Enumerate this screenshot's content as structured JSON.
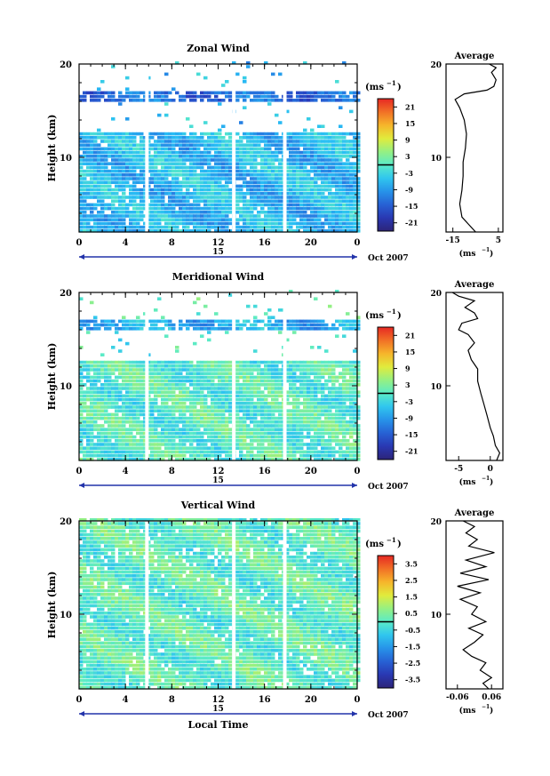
{
  "chart_data": [
    {
      "type": "heatmap",
      "title": "Zonal Wind",
      "ylabel": "Height (km)",
      "unit_label": "(ms",
      "unit_exp": "−1",
      "x_ticks": [
        "0",
        "4",
        "8",
        "12",
        "16",
        "20",
        "0"
      ],
      "xlim": [
        0,
        24
      ],
      "y_ticks": [
        "20",
        "10"
      ],
      "ylim": [
        2,
        20
      ],
      "date_label": "15",
      "date_suffix": "Oct 2007",
      "colorbar": {
        "ticks": [
          "21",
          "15",
          "9",
          "3",
          "-3",
          "-9",
          "-15",
          "-21"
        ],
        "range": [
          -24,
          24
        ]
      },
      "gaps": [
        5.7,
        13.2,
        17.6
      ],
      "field_levels": {
        "upper_band_km": [
          16,
          17.2
        ],
        "lower_top_km": 12.5,
        "lower_value_ms": -6,
        "upper_value_ms": -13
      },
      "profile": {
        "title": "Average",
        "x_ticks": [
          "-15",
          "5"
        ],
        "xlim": [
          -18,
          7
        ],
        "unit_label": "(ms",
        "unit_exp": "−1",
        "y_ticks": [
          "20",
          "10"
        ],
        "points": [
          [
            -5,
            2.0
          ],
          [
            -8,
            2.8
          ],
          [
            -11,
            3.6
          ],
          [
            -12,
            5
          ],
          [
            -11,
            6.5
          ],
          [
            -10.5,
            8
          ],
          [
            -10.5,
            9.5
          ],
          [
            -9.5,
            11
          ],
          [
            -9,
            12.5
          ],
          [
            -10,
            14
          ],
          [
            -12,
            15.3
          ],
          [
            -14,
            16.2
          ],
          [
            -10,
            16.8
          ],
          [
            0,
            17.2
          ],
          [
            3,
            17.6
          ],
          [
            4,
            18.3
          ],
          [
            2,
            19.1
          ],
          [
            4,
            19.6
          ],
          [
            1,
            20.0
          ]
        ]
      }
    },
    {
      "type": "heatmap",
      "title": "Meridional Wind",
      "ylabel": "Height (km)",
      "unit_label": "(ms",
      "unit_exp": "−1",
      "x_ticks": [
        "0",
        "4",
        "8",
        "12",
        "16",
        "20",
        "0"
      ],
      "xlim": [
        0,
        24
      ],
      "y_ticks": [
        "20",
        "10"
      ],
      "ylim": [
        2,
        20
      ],
      "date_label": "15",
      "date_suffix": "Oct 2007",
      "colorbar": {
        "ticks": [
          "21",
          "15",
          "9",
          "3",
          "-3",
          "-9",
          "-15",
          "-21"
        ],
        "range": [
          -24,
          24
        ]
      },
      "gaps": [
        5.7,
        13.2,
        17.6
      ],
      "field_levels": {
        "upper_band_km": [
          16,
          17.2
        ],
        "lower_top_km": 12.5,
        "lower_value_ms": 0,
        "upper_value_ms": -7
      },
      "profile": {
        "title": "Average",
        "x_ticks": [
          "-5",
          "0"
        ],
        "xlim": [
          -7,
          2
        ],
        "unit_label": "(ms",
        "unit_exp": "−1",
        "y_ticks": [
          "20",
          "10"
        ],
        "points": [
          [
            1,
            2.0
          ],
          [
            1.5,
            2.8
          ],
          [
            0.8,
            3.6
          ],
          [
            0.5,
            4.6
          ],
          [
            0,
            5.5
          ],
          [
            -0.5,
            6.8
          ],
          [
            -1,
            8
          ],
          [
            -1.5,
            9.2
          ],
          [
            -2,
            10.5
          ],
          [
            -2,
            11.8
          ],
          [
            -3,
            12.8
          ],
          [
            -3.5,
            13.8
          ],
          [
            -2.5,
            14.6
          ],
          [
            -3.5,
            15.5
          ],
          [
            -5,
            16
          ],
          [
            -4.5,
            16.7
          ],
          [
            -2,
            17.2
          ],
          [
            -2.5,
            17.8
          ],
          [
            -4,
            18.4
          ],
          [
            -2.5,
            19.1
          ],
          [
            -5,
            19.6
          ],
          [
            -6,
            20.0
          ]
        ]
      }
    },
    {
      "type": "heatmap",
      "title": "Vertical Wind",
      "ylabel": "Height (km)",
      "unit_label": "(ms",
      "unit_exp": "−1",
      "x_ticks": [
        "0",
        "4",
        "8",
        "12",
        "16",
        "20",
        "0"
      ],
      "xlim": [
        0,
        24
      ],
      "y_ticks": [
        "20",
        "10"
      ],
      "ylim": [
        2,
        20
      ],
      "date_label": "15",
      "date_suffix": "Oct 2007",
      "xlabel": "Local Time",
      "colorbar": {
        "ticks": [
          "3.5",
          "2.5",
          "1.5",
          "0.5",
          "-0.5",
          "-1.5",
          "-2.5",
          "-3.5"
        ],
        "range": [
          -4,
          4
        ]
      },
      "gaps": [
        5.7,
        13.2,
        17.6
      ],
      "field_levels": {
        "upper_band_km": [
          16,
          17.2
        ],
        "lower_top_km": 20,
        "lower_value_ms": 0.1,
        "upper_value_ms": 0.1
      },
      "profile": {
        "title": "Average",
        "x_ticks": [
          "-0.06",
          "0.06"
        ],
        "xlim": [
          -0.1,
          0.1
        ],
        "unit_label": "(ms",
        "unit_exp": "−1",
        "y_ticks": [
          "20",
          "10"
        ],
        "points": [
          [
            0.05,
            2.0
          ],
          [
            0.03,
            2.6
          ],
          [
            0.06,
            3.2
          ],
          [
            0.02,
            4
          ],
          [
            0.04,
            4.8
          ],
          [
            -0.01,
            5.5
          ],
          [
            -0.04,
            6.2
          ],
          [
            0.0,
            7
          ],
          [
            0.03,
            7.8
          ],
          [
            -0.02,
            8.5
          ],
          [
            0.04,
            9.2
          ],
          [
            -0.01,
            10
          ],
          [
            0.01,
            10.8
          ],
          [
            -0.05,
            11.6
          ],
          [
            0.02,
            12.3
          ],
          [
            -0.06,
            13
          ],
          [
            0.05,
            13.7
          ],
          [
            -0.05,
            14.4
          ],
          [
            0.04,
            15.1
          ],
          [
            -0.03,
            15.8
          ],
          [
            0.07,
            16.6
          ],
          [
            -0.02,
            17.3
          ],
          [
            0.01,
            18
          ],
          [
            -0.03,
            18.7
          ],
          [
            0.0,
            19.4
          ],
          [
            -0.04,
            20.0
          ]
        ]
      }
    }
  ]
}
